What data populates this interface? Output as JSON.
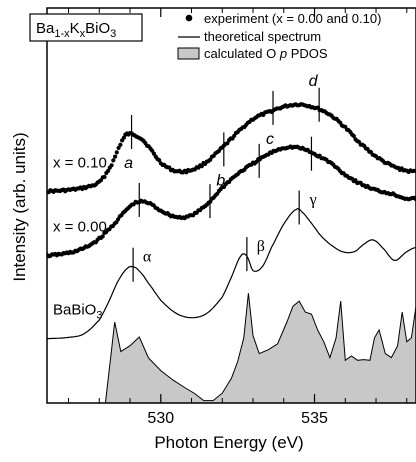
{
  "chart_data": {
    "type": "line",
    "title": "Ba1-xKxBiO3",
    "title_parts": {
      "base": "Ba",
      "sub1": "1-x",
      "mid": "K",
      "sub2": "x",
      "tail": "BiO",
      "sub3": "3"
    },
    "xlabel": "Photon Energy (eV)",
    "ylabel": "Intensity (arb. units)",
    "xlim": [
      526.3,
      538.3
    ],
    "ylim": [
      0,
      1
    ],
    "xticks": [
      {
        "value": 530,
        "label": "530"
      },
      {
        "value": 535,
        "label": "535"
      }
    ],
    "minor_xticks": [
      527,
      528,
      529,
      531,
      532,
      533,
      534,
      536,
      537,
      538
    ],
    "grid": false,
    "legend": {
      "position": "top-right",
      "entries": [
        {
          "marker": "dot",
          "label": "experiment (x = 0.00 and 0.10)"
        },
        {
          "marker": "line",
          "label": "theoretical spectrum"
        },
        {
          "marker": "box",
          "label": "calculated O p PDOS",
          "label_parts": [
            "calculated O ",
            "p",
            " PDOS"
          ]
        }
      ]
    },
    "colors": {
      "pdos_fill": "#c8c8c8",
      "line": "#000000"
    },
    "series": [
      {
        "name": "x = 0.10",
        "style": "dots",
        "x": [
          526.3,
          527.0,
          527.5,
          528.0,
          528.4,
          528.8,
          529.0,
          529.2,
          529.5,
          530.0,
          530.5,
          531.0,
          531.5,
          532.0,
          532.5,
          533.0,
          533.5,
          534.0,
          534.5,
          535.0,
          535.5,
          536.0,
          536.5,
          537.0,
          537.5,
          538.0,
          538.3
        ],
        "y": [
          0.536,
          0.539,
          0.545,
          0.559,
          0.604,
          0.671,
          0.681,
          0.677,
          0.658,
          0.609,
          0.587,
          0.59,
          0.611,
          0.646,
          0.685,
          0.719,
          0.736,
          0.75,
          0.756,
          0.748,
          0.73,
          0.697,
          0.657,
          0.624,
          0.601,
          0.588,
          0.586
        ]
      },
      {
        "name": "x = 0.00",
        "style": "dots",
        "x": [
          526.3,
          527.0,
          527.5,
          528.0,
          528.5,
          529.0,
          529.3,
          529.6,
          530.0,
          530.5,
          531.0,
          531.5,
          532.0,
          532.5,
          533.0,
          533.5,
          534.0,
          534.5,
          535.0,
          535.5,
          536.0,
          536.5,
          537.0,
          537.5,
          538.0,
          538.3
        ],
        "y": [
          0.373,
          0.38,
          0.392,
          0.416,
          0.455,
          0.497,
          0.509,
          0.506,
          0.487,
          0.471,
          0.475,
          0.503,
          0.545,
          0.58,
          0.606,
          0.63,
          0.646,
          0.646,
          0.63,
          0.609,
          0.578,
          0.555,
          0.539,
          0.53,
          0.518,
          0.517
        ]
      },
      {
        "name": "BaBiO3",
        "style": "line",
        "x": [
          526.3,
          527.0,
          527.5,
          528.0,
          528.3,
          528.6,
          528.9,
          529.1,
          529.3,
          529.6,
          530.0,
          530.5,
          531.0,
          531.5,
          532.0,
          532.3,
          532.6,
          532.8,
          533.0,
          533.3,
          533.6,
          534.0,
          534.4,
          534.6,
          534.9,
          535.2,
          535.5,
          535.9,
          536.3,
          536.6,
          536.9,
          537.2,
          537.6,
          538.0,
          538.3
        ],
        "y": [
          0.163,
          0.166,
          0.175,
          0.21,
          0.255,
          0.307,
          0.34,
          0.345,
          0.334,
          0.303,
          0.26,
          0.227,
          0.216,
          0.227,
          0.268,
          0.319,
          0.372,
          0.372,
          0.335,
          0.345,
          0.394,
          0.453,
          0.49,
          0.483,
          0.455,
          0.424,
          0.402,
          0.383,
          0.383,
          0.402,
          0.413,
          0.394,
          0.361,
          0.383,
          0.394
        ]
      },
      {
        "name": "calculated O p PDOS",
        "style": "area",
        "x": [
          526.3,
          528.2,
          528.4,
          528.5,
          528.7,
          529.0,
          529.3,
          529.6,
          530.0,
          530.4,
          530.8,
          531.1,
          531.4,
          531.7,
          532.0,
          532.3,
          532.5,
          532.7,
          532.85,
          533.0,
          533.2,
          533.5,
          533.8,
          534.1,
          534.3,
          534.5,
          534.7,
          534.9,
          535.1,
          535.3,
          535.5,
          535.7,
          535.85,
          536.0,
          536.2,
          536.4,
          536.6,
          536.8,
          536.95,
          537.1,
          537.3,
          537.5,
          537.7,
          537.85,
          538.0,
          538.15,
          538.3
        ],
        "y": [
          0.0,
          0.0,
          0.136,
          0.205,
          0.13,
          0.145,
          0.167,
          0.114,
          0.082,
          0.058,
          0.038,
          0.024,
          0.006,
          0.006,
          0.025,
          0.063,
          0.105,
          0.165,
          0.278,
          0.171,
          0.125,
          0.135,
          0.15,
          0.205,
          0.245,
          0.258,
          0.23,
          0.225,
          0.185,
          0.155,
          0.115,
          0.165,
          0.258,
          0.108,
          0.119,
          0.108,
          0.11,
          0.108,
          0.165,
          0.185,
          0.125,
          0.115,
          0.145,
          0.23,
          0.155,
          0.165,
          0.245
        ]
      }
    ],
    "curve_labels": [
      {
        "text": "x = 0.10",
        "series": "x = 0.10"
      },
      {
        "text": "x = 0.00",
        "series": "x = 0.00"
      },
      {
        "text": "BaBiO3",
        "series": "BaBiO3",
        "parts": [
          "BaBiO",
          "3"
        ]
      }
    ],
    "feature_markers": [
      {
        "x": 529.05,
        "y": 0.681,
        "label": "a",
        "style": "italic",
        "label_pos": "below"
      },
      {
        "x": 532.05,
        "y": 0.637,
        "label": "b",
        "style": "italic",
        "label_pos": "below"
      },
      {
        "x": 533.65,
        "y": 0.742,
        "label": "c",
        "style": "italic",
        "label_pos": "below"
      },
      {
        "x": 535.15,
        "y": 0.75,
        "label": "d",
        "style": "italic",
        "label_pos": "above"
      },
      {
        "x": 529.3,
        "y": 0.509,
        "label": "",
        "label_pos": "none"
      },
      {
        "x": 531.6,
        "y": 0.506,
        "label": "",
        "label_pos": "none"
      },
      {
        "x": 533.2,
        "y": 0.608,
        "label": "",
        "label_pos": "none"
      },
      {
        "x": 534.9,
        "y": 0.626,
        "label": "",
        "label_pos": "none"
      },
      {
        "x": 529.1,
        "y": 0.345,
        "label": "α",
        "style": "greek",
        "label_pos": "right"
      },
      {
        "x": 532.8,
        "y": 0.372,
        "label": "β",
        "style": "greek",
        "label_pos": "right"
      },
      {
        "x": 534.5,
        "y": 0.49,
        "label": "γ",
        "style": "greek",
        "label_pos": "right"
      }
    ]
  }
}
